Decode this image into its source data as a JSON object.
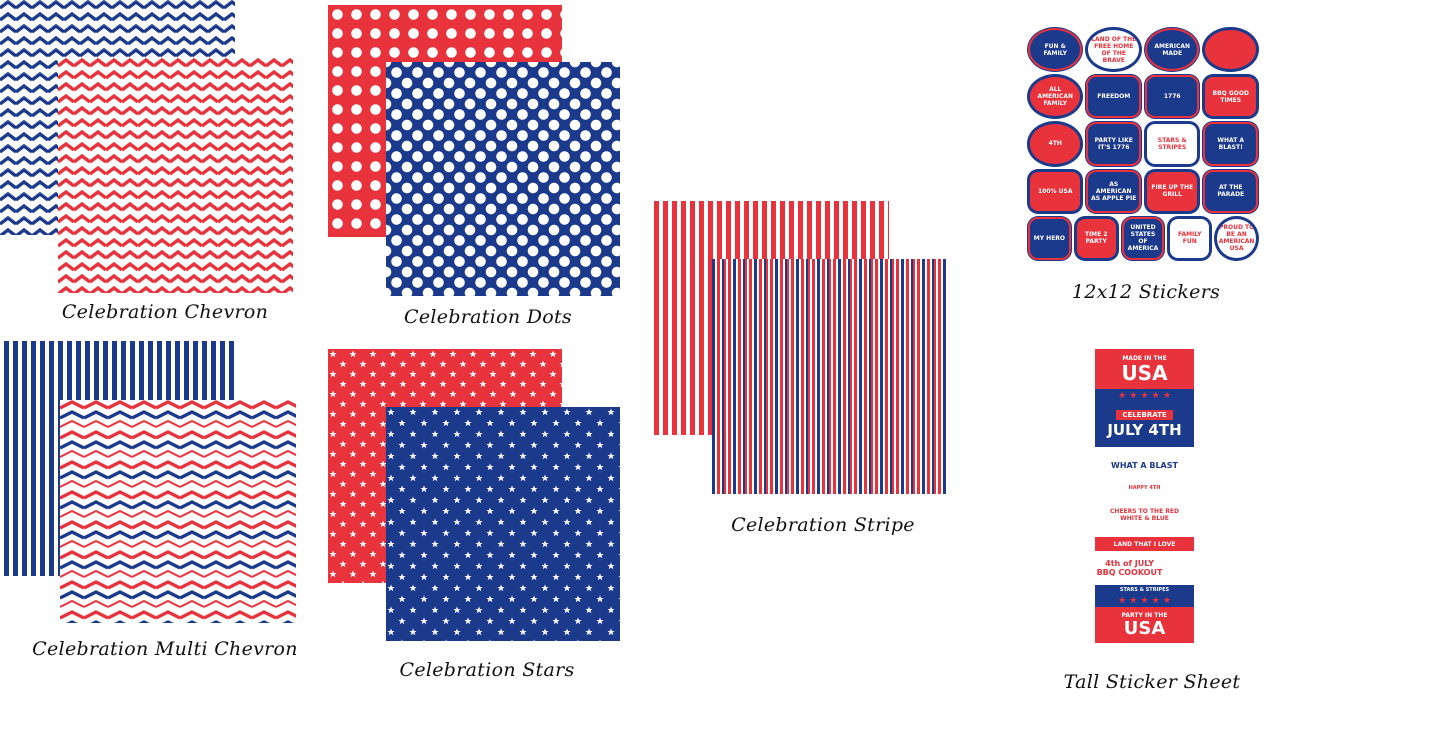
{
  "colors": {
    "blue": "#1c3a8c",
    "red": "#e8323c",
    "white": "#ffffff"
  },
  "products": [
    {
      "label": "Celebration Chevron"
    },
    {
      "label": "Celebration Dots"
    },
    {
      "label": "Celebration Multi Chevron"
    },
    {
      "label": "Celebration Stars"
    },
    {
      "label": "Celebration Stripe"
    },
    {
      "label": "12x12 Stickers"
    },
    {
      "label": "Tall Sticker Sheet"
    }
  ],
  "stickers": [
    "FUN & FAMILY",
    "LAND OF THE FREE HOME OF THE BRAVE",
    "AMERICAN MADE",
    "",
    "ALL AMERICAN FAMILY",
    "FREEDOM",
    "1776",
    "BBQ GOOD TIMES",
    "4TH",
    "PARTY LIKE IT'S 1776",
    "STARS & STRIPES",
    "WHAT A BLAST!",
    "100% USA",
    "AS AMERICAN AS APPLE PIE",
    "FIRE UP THE GRILL",
    "AT THE PARADE",
    "MY HERO",
    "TIME 2 PARTY",
    "UNITED STATES OF AMERICA",
    "FAMILY FUN",
    "PROUD TO BE AN AMERICAN USA"
  ],
  "tall_sheet": [
    "MADE IN THE",
    "USA",
    "CELEBRATE",
    "JULY 4TH",
    "WHAT A BLAST",
    "HAPPY 4TH",
    "CHEERS TO THE RED WHITE & BLUE",
    "LAND THAT I LOVE",
    "4th of JULY BBQ COOKOUT",
    "STARS & STRIPES",
    "PARTY IN THE",
    "USA"
  ]
}
